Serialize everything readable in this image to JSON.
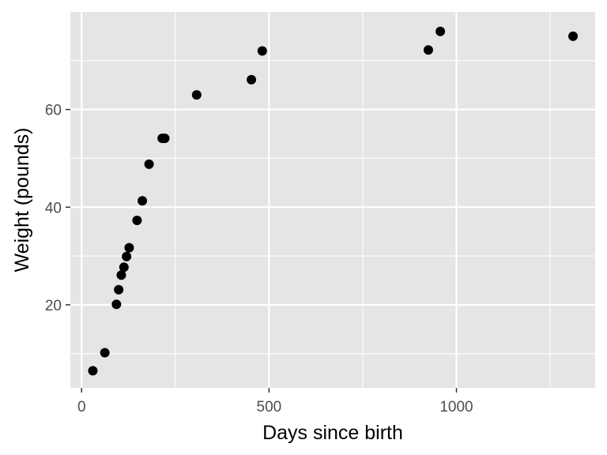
{
  "chart_data": {
    "type": "scatter",
    "title": "",
    "xlabel": "Days since birth",
    "ylabel": "Weight (pounds)",
    "xlim": [
      -30,
      1370
    ],
    "ylim": [
      3,
      80
    ],
    "x_ticks": [
      0,
      500,
      1000
    ],
    "y_ticks": [
      20,
      40,
      60
    ],
    "grid": true,
    "colors": {
      "panel": "#e5e5e5",
      "grid": "#ffffff",
      "point": "#000000",
      "tick": "#333333"
    },
    "points": [
      {
        "x": 30,
        "y": 6.5
      },
      {
        "x": 62,
        "y": 10.2
      },
      {
        "x": 93,
        "y": 20.1
      },
      {
        "x": 99,
        "y": 23.1
      },
      {
        "x": 106,
        "y": 26.1
      },
      {
        "x": 113,
        "y": 27.7
      },
      {
        "x": 120,
        "y": 29.9
      },
      {
        "x": 127,
        "y": 31.7
      },
      {
        "x": 148,
        "y": 37.3
      },
      {
        "x": 162,
        "y": 41.3
      },
      {
        "x": 180,
        "y": 48.8
      },
      {
        "x": 215,
        "y": 54.1
      },
      {
        "x": 222,
        "y": 54.1
      },
      {
        "x": 307,
        "y": 63.0
      },
      {
        "x": 453,
        "y": 66.1
      },
      {
        "x": 482,
        "y": 72.0
      },
      {
        "x": 925,
        "y": 72.2
      },
      {
        "x": 957,
        "y": 76.0
      },
      {
        "x": 1311,
        "y": 75.0
      }
    ]
  }
}
